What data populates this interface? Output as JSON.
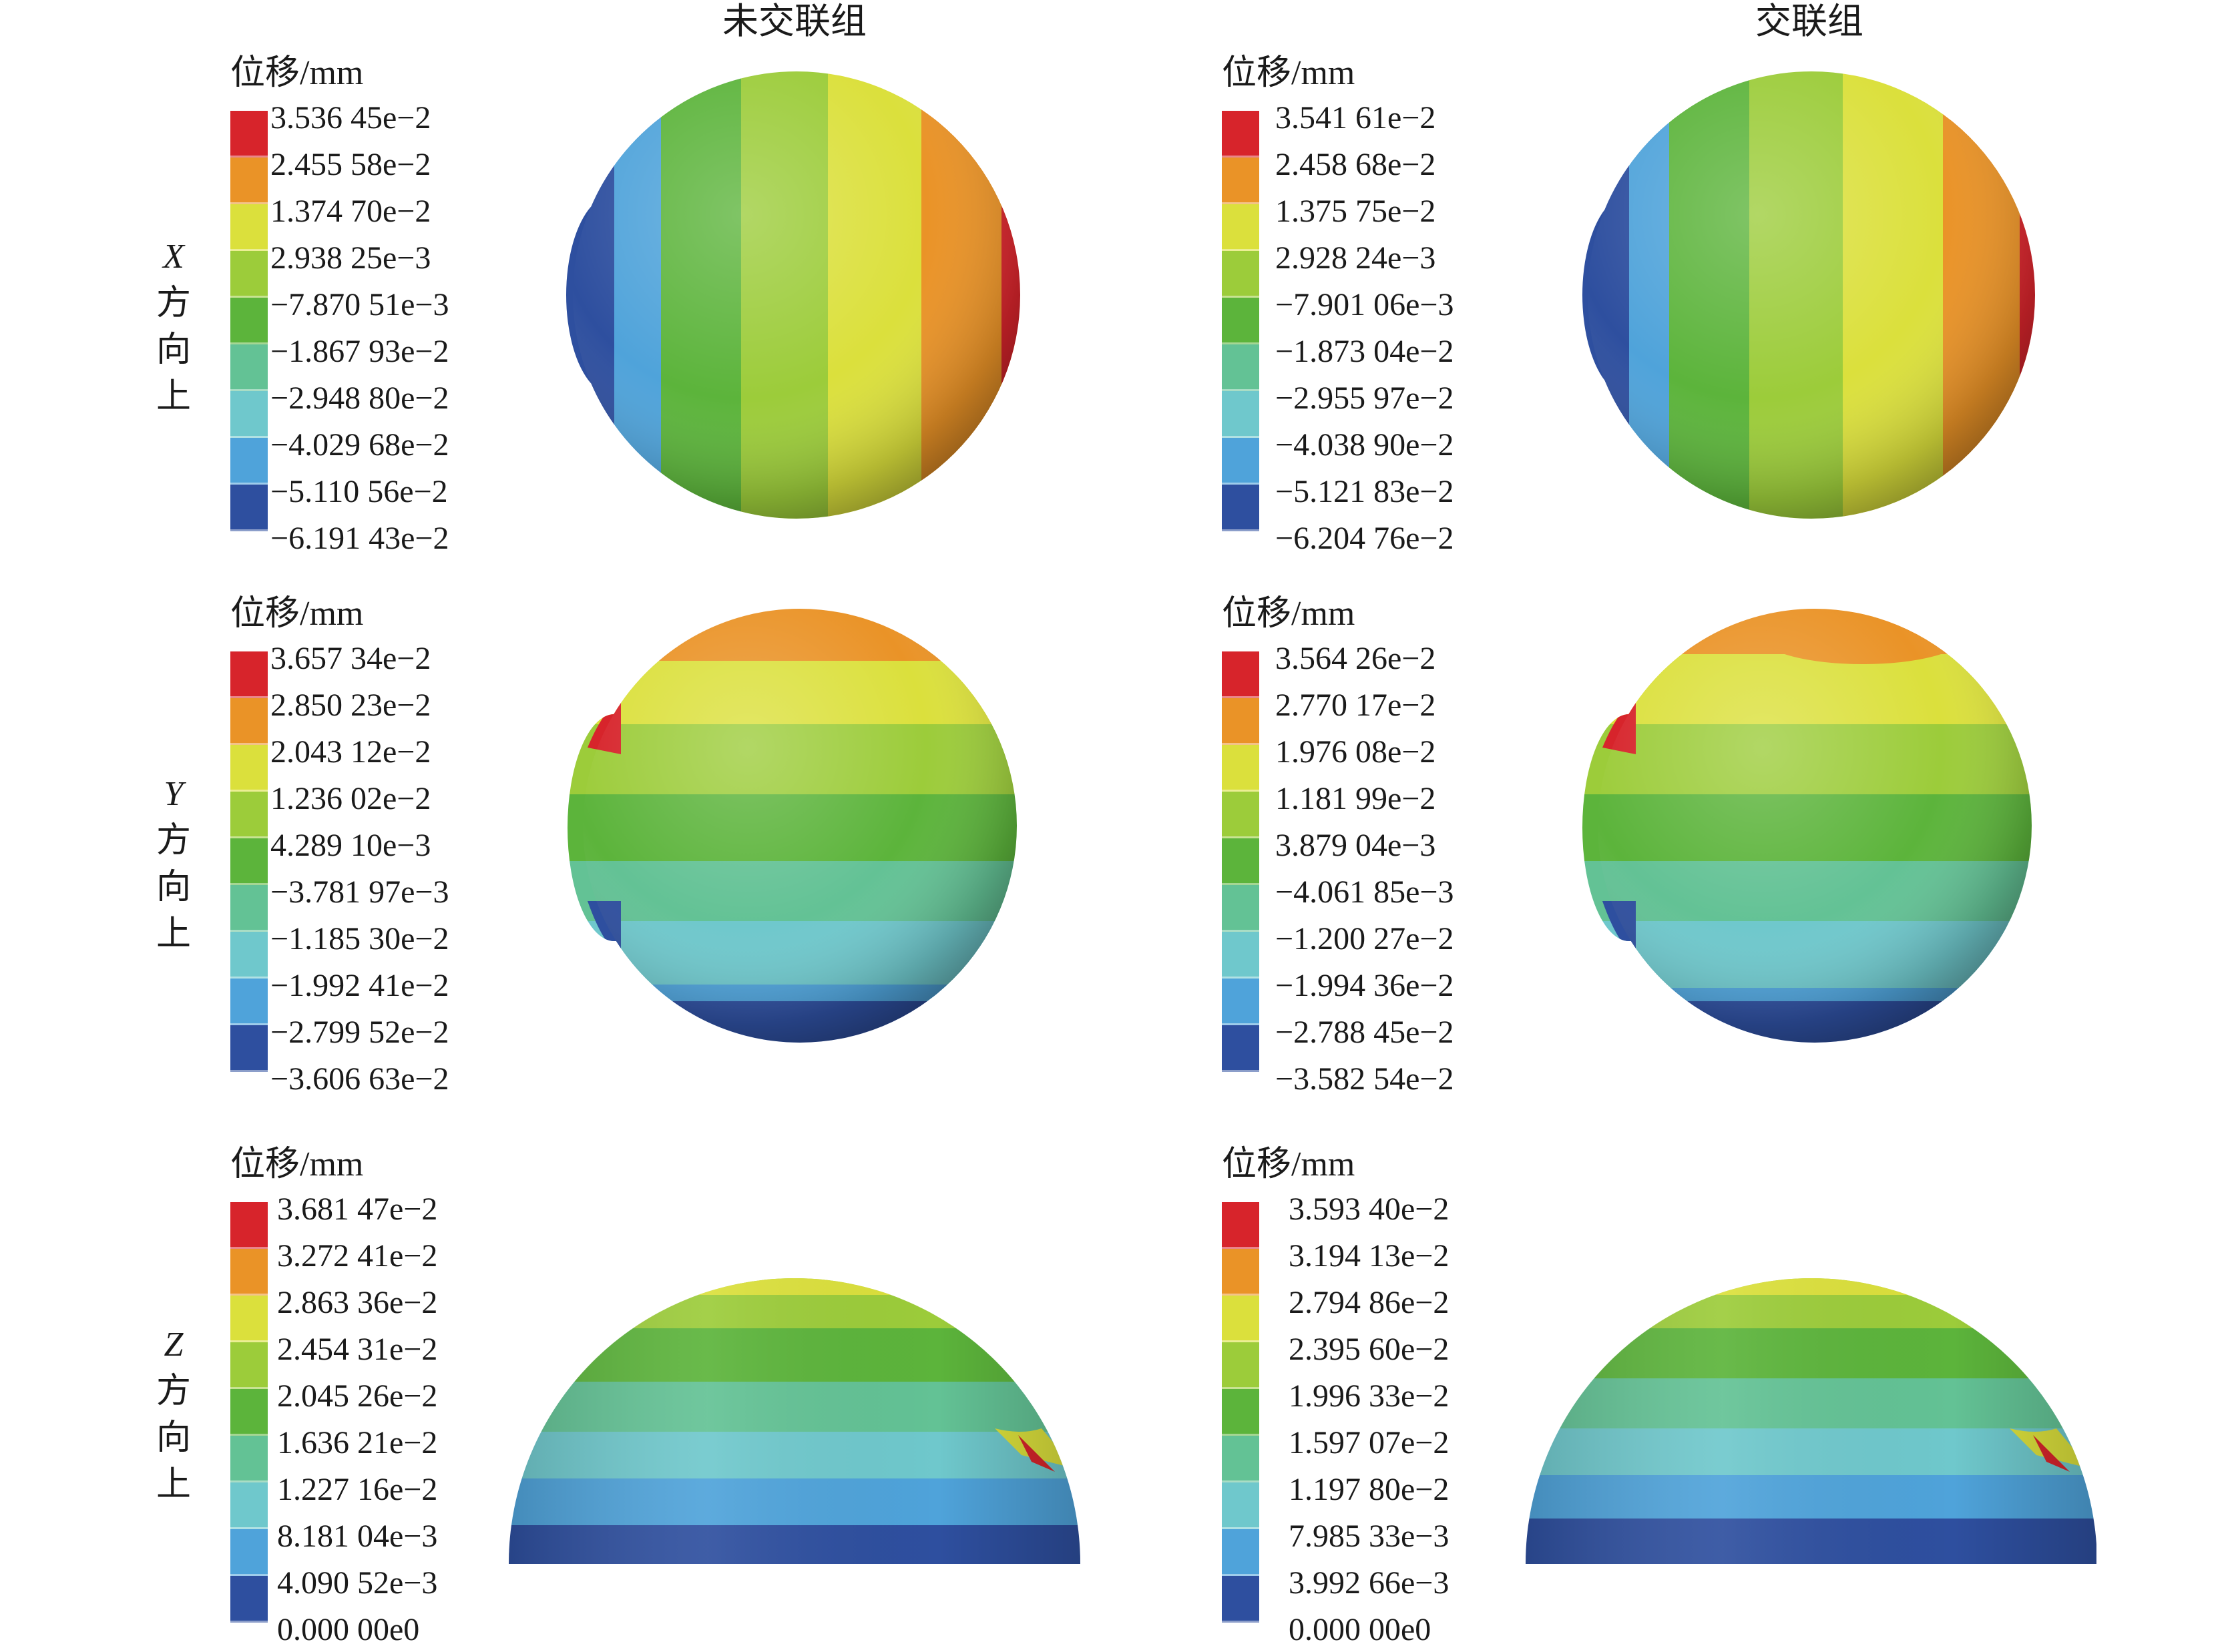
{
  "columns": {
    "left_title": "未交联组",
    "right_title": "交联组"
  },
  "unit_label": "位移/mm",
  "direction_labels": [
    {
      "axis": "X",
      "chars": [
        "方",
        "向",
        "上"
      ]
    },
    {
      "axis": "Y",
      "chars": [
        "方",
        "向",
        "上"
      ]
    },
    {
      "axis": "Z",
      "chars": [
        "方",
        "向",
        "上"
      ]
    }
  ],
  "colors": [
    "#d7242b",
    "#ea9327",
    "#dbe03c",
    "#9ccc3a",
    "#5cb43b",
    "#63c295",
    "#6fc8cc",
    "#4fa3da",
    "#2e4f9f"
  ],
  "legends": {
    "x_left": [
      "3.536 45e−2",
      "2.455 58e−2",
      "1.374 70e−2",
      "2.938 25e−3",
      "−7.870 51e−3",
      "−1.867 93e−2",
      "−2.948 80e−2",
      "−4.029 68e−2",
      "−5.110 56e−2",
      "−6.191 43e−2"
    ],
    "x_right": [
      "3.541 61e−2",
      "2.458 68e−2",
      "1.375 75e−2",
      "2.928 24e−3",
      "−7.901 06e−3",
      "−1.873 04e−2",
      "−2.955 97e−2",
      "−4.038 90e−2",
      "−5.121 83e−2",
      "−6.204 76e−2"
    ],
    "y_left": [
      "3.657 34e−2",
      "2.850 23e−2",
      "2.043 12e−2",
      "1.236 02e−2",
      "4.289 10e−3",
      "−3.781 97e−3",
      "−1.185 30e−2",
      "−1.992 41e−2",
      "−2.799 52e−2",
      "−3.606 63e−2"
    ],
    "y_right": [
      "3.564 26e−2",
      "2.770 17e−2",
      "1.976 08e−2",
      "1.181 99e−2",
      "3.879 04e−3",
      "−4.061 85e−3",
      "−1.200 27e−2",
      "−1.994 36e−2",
      "−2.788 45e−2",
      "−3.582 54e−2"
    ],
    "z_left": [
      "3.681 47e−2",
      "3.272 41e−2",
      "2.863 36e−2",
      "2.454 31e−2",
      "2.045 26e−2",
      "1.636 21e−2",
      "1.227 16e−2",
      "8.181 04e−3",
      "4.090 52e−3",
      "0.000 00e0"
    ],
    "z_right": [
      "3.593 40e−2",
      "3.194 13e−2",
      "2.794 86e−2",
      "2.395 60e−2",
      "1.996 33e−2",
      "1.597 07e−2",
      "1.197 80e−2",
      "7.985 33e−3",
      "3.992 66e−3",
      "0.000 00e0"
    ]
  }
}
